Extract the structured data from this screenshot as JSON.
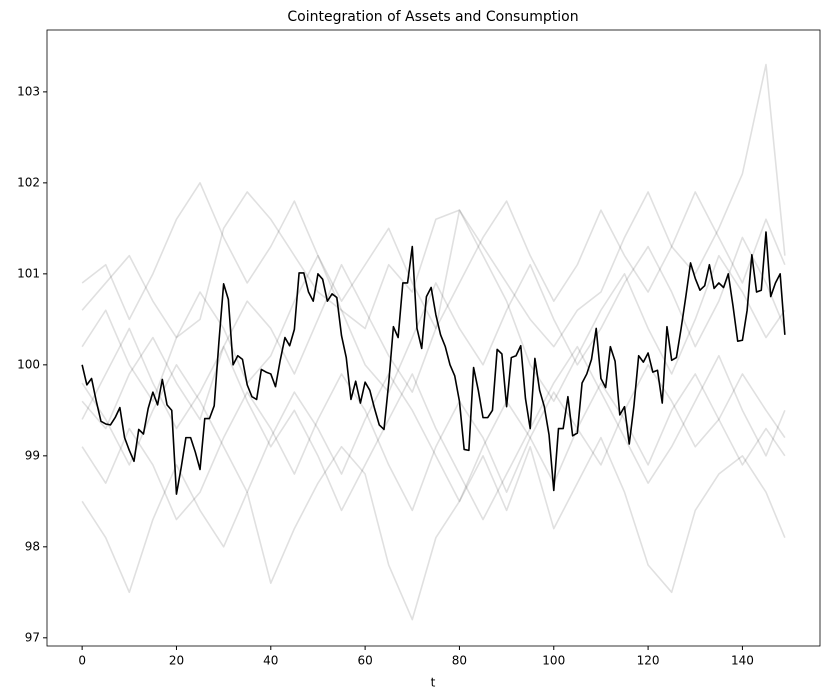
{
  "chart_data": {
    "type": "line",
    "title": "Cointegration of Assets and Consumption",
    "xlabel": "t",
    "x": [
      0,
      1,
      2,
      3,
      4,
      5,
      6,
      7,
      8,
      9,
      10,
      11,
      12,
      13,
      14,
      15,
      16,
      17,
      18,
      19,
      20,
      21,
      22,
      23,
      24,
      25,
      26,
      27,
      28,
      29,
      30,
      31,
      32,
      33,
      34,
      35,
      36,
      37,
      38,
      39,
      40,
      41,
      42,
      43,
      44,
      45,
      46,
      47,
      48,
      49,
      50,
      51,
      52,
      53,
      54,
      55,
      56,
      57,
      58,
      59,
      60,
      61,
      62,
      63,
      64,
      65,
      66,
      67,
      68,
      69,
      70,
      71,
      72,
      73,
      74,
      75,
      76,
      77,
      78,
      79,
      80,
      81,
      82,
      83,
      84,
      85,
      86,
      87,
      88,
      89,
      90,
      91,
      92,
      93,
      94,
      95,
      96,
      97,
      98,
      99,
      100,
      101,
      102,
      103,
      104,
      105,
      106,
      107,
      108,
      109,
      110,
      111,
      112,
      113,
      114,
      115,
      116,
      117,
      118,
      119,
      120,
      121,
      122,
      123,
      124,
      125,
      126,
      127,
      128,
      129,
      130,
      131,
      132,
      133,
      134,
      135,
      136,
      137,
      138,
      139,
      140,
      141,
      142,
      143,
      144,
      145,
      146,
      147,
      148,
      149
    ],
    "xlim": [
      -7.45,
      156.45
    ],
    "ylim": [
      96.91,
      103.68
    ],
    "xticks": [
      0,
      20,
      40,
      60,
      80,
      100,
      120,
      140
    ],
    "yticks": [
      97,
      98,
      99,
      100,
      101,
      102,
      103
    ],
    "grid": false,
    "series": [
      {
        "color": "#000000",
        "values": [
          100.0,
          99.78,
          99.85,
          99.6,
          99.38,
          99.35,
          99.34,
          99.42,
          99.53,
          99.2,
          99.06,
          98.94,
          99.29,
          99.24,
          99.52,
          99.7,
          99.56,
          99.84,
          99.56,
          99.5,
          98.58,
          98.87,
          99.2,
          99.2,
          99.04,
          98.85,
          99.41,
          99.41,
          99.55,
          100.25,
          100.89,
          100.72,
          100.0,
          100.1,
          100.06,
          99.78,
          99.65,
          99.62,
          99.95,
          99.92,
          99.9,
          99.76,
          100.05,
          100.3,
          100.21,
          100.39,
          101.01,
          101.01,
          100.8,
          100.7,
          101.0,
          100.94,
          100.7,
          100.78,
          100.74,
          100.32,
          100.08,
          99.62,
          99.82,
          99.58,
          99.81,
          99.72,
          99.52,
          99.34,
          99.29,
          99.8,
          100.42,
          100.3,
          100.9,
          100.9,
          101.3,
          100.4,
          100.18,
          100.75,
          100.85,
          100.55,
          100.33,
          100.2,
          100.0,
          99.88,
          99.6,
          99.07,
          99.06,
          99.97,
          99.72,
          99.42,
          99.42,
          99.5,
          100.17,
          100.12,
          99.54,
          100.08,
          100.1,
          100.21,
          99.63,
          99.3,
          100.07,
          99.72,
          99.54,
          99.23,
          98.62,
          99.3,
          99.3,
          99.65,
          99.22,
          99.25,
          99.8,
          99.9,
          100.06,
          100.4,
          99.85,
          99.75,
          100.2,
          100.04,
          99.45,
          99.54,
          99.13,
          99.55,
          100.1,
          100.03,
          100.13,
          99.92,
          99.94,
          99.58,
          100.42,
          100.05,
          100.08,
          100.4,
          100.75,
          101.12,
          100.95,
          100.82,
          100.87,
          101.1,
          100.84,
          100.9,
          100.85,
          101.0,
          100.65,
          100.26,
          100.27,
          100.6,
          101.21,
          100.8,
          100.82,
          101.46,
          100.75,
          100.9,
          101.0,
          100.33
        ]
      },
      {
        "color": "rgba(0,0,0,0.12)",
        "x": [
          0,
          5,
          10,
          15,
          20,
          25,
          30,
          35,
          40,
          45,
          50,
          55,
          60,
          65,
          70,
          75,
          80,
          85,
          90,
          95,
          100,
          105,
          110,
          115,
          120,
          125,
          130,
          135,
          140,
          145,
          149
        ],
        "values": [
          100.6,
          100.9,
          101.2,
          100.7,
          100.3,
          100.5,
          101.5,
          101.9,
          101.6,
          101.2,
          100.8,
          100.6,
          100.4,
          101.1,
          100.8,
          101.6,
          101.7,
          101.3,
          100.9,
          100.5,
          100.2,
          100.6,
          100.8,
          101.4,
          101.9,
          101.3,
          101.0,
          101.5,
          102.1,
          103.3,
          101.2
        ]
      },
      {
        "color": "rgba(0,0,0,0.12)",
        "x": [
          0,
          5,
          10,
          15,
          20,
          25,
          30,
          35,
          40,
          45,
          50,
          55,
          60,
          65,
          70,
          75,
          80,
          85,
          90,
          95,
          100,
          105,
          110,
          115,
          120,
          125,
          130,
          135,
          140,
          145,
          149
        ],
        "values": [
          98.5,
          98.1,
          97.5,
          98.3,
          98.9,
          98.4,
          98.0,
          98.6,
          97.6,
          98.2,
          98.7,
          99.1,
          98.8,
          97.8,
          97.2,
          98.1,
          98.5,
          99.0,
          98.4,
          99.1,
          98.2,
          98.7,
          99.2,
          98.6,
          97.8,
          97.5,
          98.4,
          98.8,
          99.0,
          98.6,
          98.1
        ]
      },
      {
        "color": "rgba(0,0,0,0.12)",
        "x": [
          0,
          5,
          10,
          15,
          20,
          25,
          30,
          35,
          40,
          45,
          50,
          55,
          60,
          65,
          70,
          75,
          80,
          85,
          90,
          95,
          100,
          105,
          110,
          115,
          120,
          125,
          130,
          135,
          140,
          145,
          149
        ],
        "values": [
          99.6,
          99.3,
          99.9,
          100.3,
          99.8,
          99.4,
          100.2,
          100.7,
          100.4,
          99.9,
          100.5,
          101.1,
          100.6,
          100.1,
          99.7,
          100.4,
          101.7,
          101.2,
          100.7,
          100.0,
          99.6,
          100.1,
          100.6,
          101.0,
          100.4,
          99.9,
          100.5,
          101.2,
          100.8,
          100.3,
          100.6
        ]
      },
      {
        "color": "rgba(0,0,0,0.12)",
        "x": [
          0,
          5,
          10,
          15,
          20,
          25,
          30,
          35,
          40,
          45,
          50,
          55,
          60,
          65,
          70,
          75,
          80,
          85,
          90,
          95,
          100,
          105,
          110,
          115,
          120,
          125,
          130,
          135,
          140,
          145,
          149
        ],
        "values": [
          99.1,
          98.7,
          99.3,
          98.9,
          98.3,
          98.6,
          99.2,
          99.7,
          99.3,
          98.8,
          99.4,
          99.9,
          99.5,
          98.9,
          98.4,
          99.1,
          99.6,
          99.2,
          98.6,
          99.2,
          99.7,
          99.3,
          98.9,
          99.5,
          100.0,
          99.6,
          99.1,
          99.4,
          99.9,
          99.5,
          99.2
        ]
      },
      {
        "color": "rgba(0,0,0,0.12)",
        "x": [
          0,
          5,
          10,
          15,
          20,
          25,
          30,
          35,
          40,
          45,
          50,
          55,
          60,
          65,
          70,
          75,
          80,
          85,
          90,
          95,
          100,
          105,
          110,
          115,
          120,
          125,
          130,
          135,
          140,
          145,
          149
        ],
        "values": [
          100.2,
          100.6,
          100.0,
          99.6,
          100.3,
          100.8,
          100.4,
          99.8,
          100.1,
          100.7,
          101.2,
          100.6,
          100.0,
          99.7,
          100.3,
          100.9,
          100.4,
          100.0,
          100.6,
          101.1,
          100.5,
          100.0,
          100.4,
          100.9,
          101.3,
          100.8,
          100.2,
          100.7,
          101.4,
          100.9,
          100.4
        ]
      },
      {
        "color": "rgba(0,0,0,0.12)",
        "x": [
          0,
          5,
          10,
          15,
          20,
          25,
          30,
          35,
          40,
          45,
          50,
          55,
          60,
          65,
          70,
          75,
          80,
          85,
          90,
          95,
          100,
          105,
          110,
          115,
          120,
          125,
          130,
          135,
          140,
          145,
          149
        ],
        "values": [
          99.8,
          99.4,
          98.9,
          99.5,
          100.0,
          99.6,
          99.1,
          98.6,
          99.2,
          99.7,
          99.3,
          98.8,
          99.4,
          99.9,
          99.5,
          99.0,
          98.5,
          99.1,
          99.6,
          99.2,
          98.7,
          99.3,
          99.8,
          99.4,
          98.9,
          99.5,
          99.9,
          99.4,
          98.9,
          99.3,
          99.0
        ]
      },
      {
        "color": "rgba(0,0,0,0.12)",
        "x": [
          0,
          5,
          10,
          15,
          20,
          25,
          30,
          35,
          40,
          45,
          50,
          55,
          60,
          65,
          70,
          75,
          80,
          85,
          90,
          95,
          100,
          105,
          110,
          115,
          120,
          125,
          130,
          135,
          140,
          145,
          149
        ],
        "values": [
          100.9,
          101.1,
          100.5,
          101.0,
          101.6,
          102.0,
          101.4,
          100.9,
          101.3,
          101.8,
          101.2,
          100.7,
          101.1,
          101.5,
          100.9,
          100.4,
          100.9,
          101.4,
          101.8,
          101.2,
          100.7,
          101.1,
          101.7,
          101.2,
          100.8,
          101.3,
          101.9,
          101.4,
          100.9,
          101.6,
          101.1
        ]
      },
      {
        "color": "rgba(0,0,0,0.12)",
        "x": [
          0,
          5,
          10,
          15,
          20,
          25,
          30,
          35,
          40,
          45,
          50,
          55,
          60,
          65,
          70,
          75,
          80,
          85,
          90,
          95,
          100,
          105,
          110,
          115,
          120,
          125,
          130,
          135,
          140,
          145,
          149
        ],
        "values": [
          99.4,
          99.9,
          100.4,
          99.8,
          99.3,
          99.7,
          100.2,
          99.6,
          99.1,
          99.5,
          99.0,
          98.4,
          98.9,
          99.4,
          99.9,
          99.3,
          98.8,
          98.3,
          98.8,
          99.3,
          99.8,
          100.2,
          99.7,
          99.2,
          98.7,
          99.1,
          99.6,
          100.1,
          99.5,
          99.0,
          99.5
        ]
      }
    ]
  }
}
